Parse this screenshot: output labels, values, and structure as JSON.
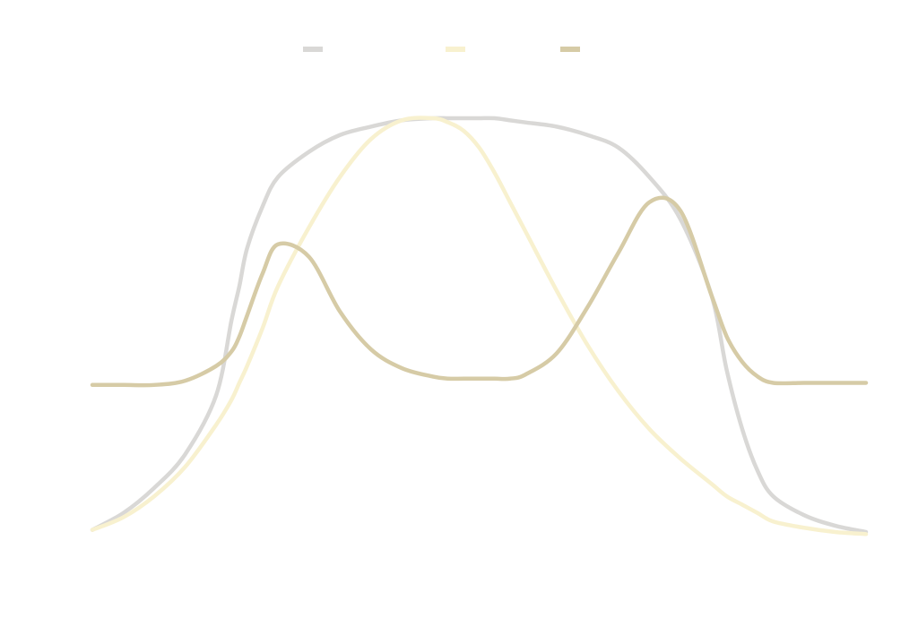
{
  "chart_data": {
    "type": "line",
    "title": "",
    "xlabel": "",
    "ylabel": "",
    "grid": false,
    "axes_visible": false,
    "legend_placement": "top-center",
    "xlim": [
      0,
      100
    ],
    "ylim": [
      0,
      100
    ],
    "x": [
      0,
      4,
      8,
      12,
      16,
      18,
      19,
      20,
      22,
      24,
      28,
      32,
      36,
      40,
      44,
      46,
      48,
      50,
      52,
      54,
      56,
      60,
      64,
      68,
      72,
      76,
      80,
      82,
      84,
      86,
      88,
      92,
      96,
      100
    ],
    "series": [
      {
        "color": "#d9d8d6",
        "values": [
          2,
          6,
          12,
          20,
          34,
          52,
          60,
          69,
          79,
          86,
          92,
          96,
          98,
          99.5,
          100,
          100,
          100,
          100,
          100,
          99.5,
          99,
          98,
          96,
          93,
          86,
          76,
          58,
          40,
          26,
          16,
          10,
          5.5,
          3,
          1.5
        ]
      },
      {
        "color": "#f8f1cf",
        "values": [
          2,
          5,
          10,
          17,
          27,
          33,
          37,
          41,
          50,
          60,
          74,
          86,
          95,
          99.5,
          100,
          99,
          97,
          93,
          87,
          80,
          73,
          59,
          46,
          35,
          26,
          19,
          13,
          10,
          8,
          6,
          4,
          2.5,
          1.5,
          1
        ]
      },
      {
        "color": "#d6cba6",
        "values": [
          36.5,
          36.5,
          36.5,
          37.5,
          41,
          44.5,
          48,
          53,
          63,
          70,
          67,
          54,
          45,
          40.5,
          38.5,
          38,
          38,
          38,
          38,
          38,
          39,
          44,
          55,
          68,
          80,
          78,
          58,
          48,
          42,
          38.5,
          37,
          37,
          37,
          37
        ]
      }
    ]
  }
}
